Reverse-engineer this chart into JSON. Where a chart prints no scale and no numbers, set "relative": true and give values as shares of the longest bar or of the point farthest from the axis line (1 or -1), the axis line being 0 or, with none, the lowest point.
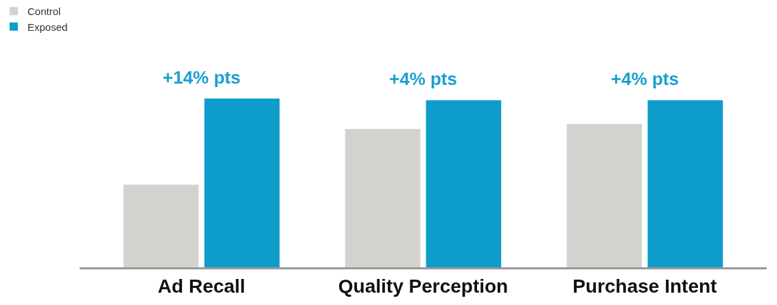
{
  "chart_data": {
    "type": "bar",
    "relative": true,
    "categories": [
      "Ad Recall",
      "Quality Perception",
      "Purchase Intent"
    ],
    "series": [
      {
        "name": "Control",
        "color": "#d3d2ce",
        "values": [
          0.49,
          0.82,
          0.85
        ]
      },
      {
        "name": "Exposed",
        "color": "#0e9dcb",
        "values": [
          1,
          0.99,
          0.99
        ]
      }
    ],
    "annotations": [
      "+14% pts",
      "+4% pts",
      "+4% pts"
    ],
    "legend": "top left"
  }
}
